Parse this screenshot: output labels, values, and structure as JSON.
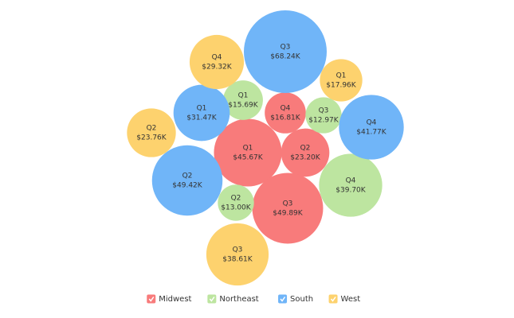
{
  "chart_data": {
    "type": "bubble",
    "categories": [
      "Q1",
      "Q2",
      "Q3",
      "Q4"
    ],
    "series": [
      {
        "name": "Midwest",
        "color": "#f87b7b",
        "values": [
          45670,
          23200,
          49890,
          16810
        ],
        "value_labels": [
          "$45.67K",
          "$23.20K",
          "$49.89K",
          "$16.81K"
        ]
      },
      {
        "name": "Northeast",
        "color": "#bde5a0",
        "values": [
          15690,
          13000,
          12970,
          39700
        ],
        "value_labels": [
          "$15.69K",
          "$13.00K",
          "$12.97K",
          "$39.70K"
        ]
      },
      {
        "name": "South",
        "color": "#70b5f8",
        "values": [
          31470,
          49420,
          68240,
          41770
        ],
        "value_labels": [
          "$31.47K",
          "$49.42K",
          "$68.24K",
          "$41.77K"
        ]
      },
      {
        "name": "West",
        "color": "#fdd26e",
        "values": [
          17960,
          23760,
          38610,
          29320
        ],
        "value_labels": [
          "$17.96K",
          "$23.76K",
          "$38.61K",
          "$29.32K"
        ]
      }
    ],
    "legend": "bottom"
  }
}
